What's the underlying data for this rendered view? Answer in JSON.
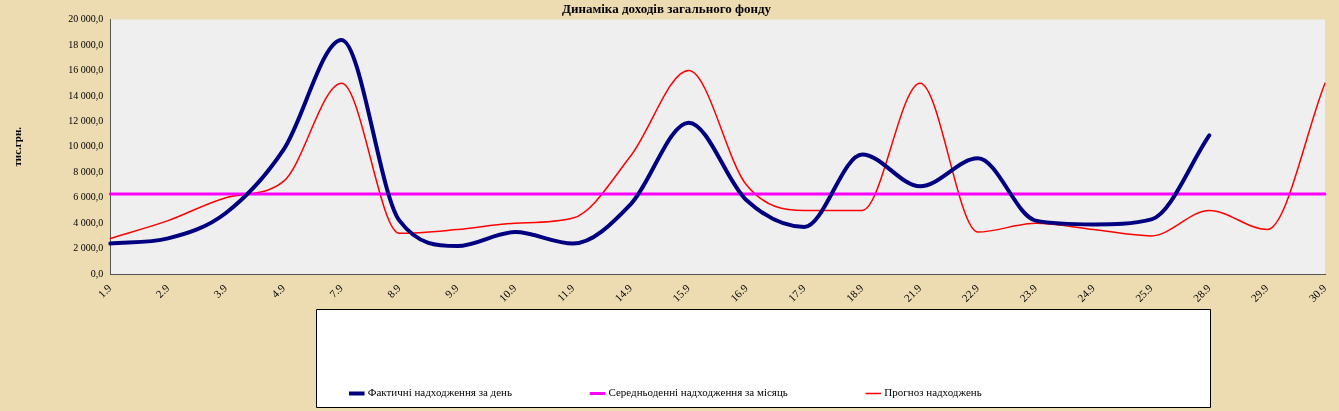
{
  "chart_data": {
    "type": "line",
    "title": "Динаміка доходів загального фонду",
    "ylabel": "тис.грн.",
    "categories": [
      "1.9",
      "2.9",
      "3.9",
      "4.9",
      "7.9",
      "8.9",
      "9.9",
      "10.9",
      "11.9",
      "14.9",
      "15.9",
      "16.9",
      "17.9",
      "18.9",
      "21.9",
      "22.9",
      "23.9",
      "24.9",
      "25.9",
      "28.9",
      "29.9",
      "30.9"
    ],
    "series": [
      {
        "name": "Фактичні надходження за день",
        "color": "#000080",
        "values": [
          2400,
          2800,
          4800,
          9800,
          18400,
          4200,
          2200,
          3300,
          2400,
          5500,
          11900,
          5800,
          3700,
          9400,
          6900,
          9100,
          4200,
          3900,
          4300,
          10900,
          null,
          null
        ]
      },
      {
        "name": "Середньоденні надходження за місяць",
        "color": "#ff00ff",
        "values": [
          6300,
          6300,
          6300,
          6300,
          6300,
          6300,
          6300,
          6300,
          6300,
          6300,
          6300,
          6300,
          6300,
          6300,
          6300,
          6300,
          6300,
          6300,
          6300,
          6300,
          6300,
          6300
        ]
      },
      {
        "name": "Прогноз надходжень",
        "color": "#ff0000",
        "values": [
          2800,
          4200,
          6000,
          7300,
          15000,
          3200,
          3500,
          4000,
          4400,
          9300,
          16000,
          7000,
          5000,
          5000,
          15000,
          3300,
          4000,
          3500,
          3000,
          5000,
          3500,
          15000
        ]
      }
    ],
    "ylim": [
      0,
      20000
    ],
    "yticks": [
      {
        "value": 0,
        "label": "0,0"
      },
      {
        "value": 2000,
        "label": "2 000,0"
      },
      {
        "value": 4000,
        "label": "4 000,0"
      },
      {
        "value": 6000,
        "label": "6 000,0"
      },
      {
        "value": 8000,
        "label": "8 000,0"
      },
      {
        "value": 10000,
        "label": "10 000,0"
      },
      {
        "value": 12000,
        "label": "12 000,0"
      },
      {
        "value": 14000,
        "label": "14 000,0"
      },
      {
        "value": 16000,
        "label": "16 000,0"
      },
      {
        "value": 18000,
        "label": "18 000,0"
      },
      {
        "value": 20000,
        "label": "20 000,0"
      }
    ],
    "grid": false,
    "legend": "bottom",
    "marker": "none",
    "line_style": "solid"
  }
}
